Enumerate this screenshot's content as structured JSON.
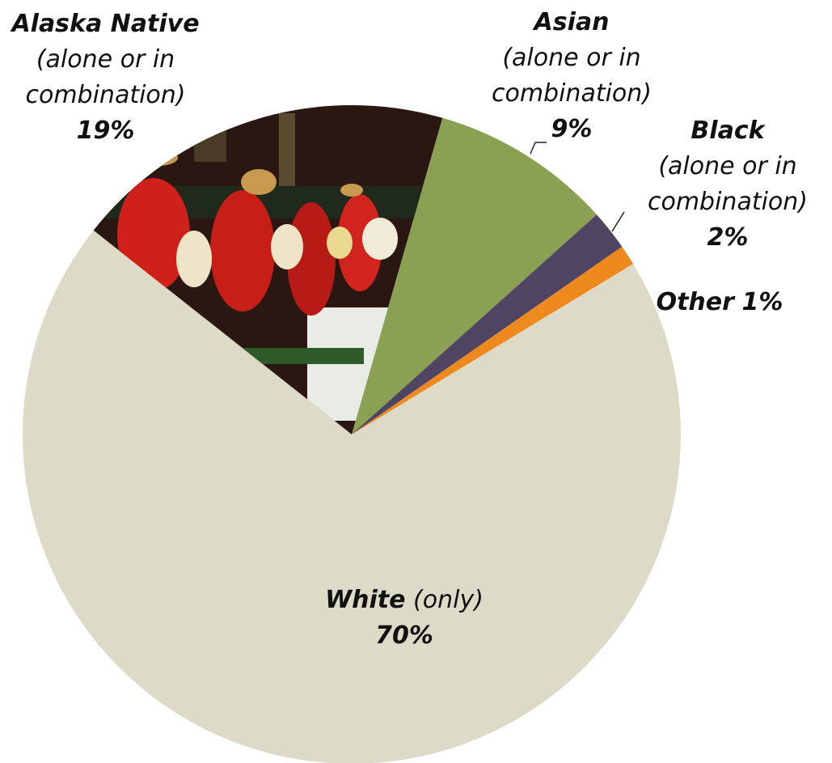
{
  "chart_data": {
    "type": "pie",
    "categories": [
      "Alaska Native",
      "Asian",
      "Black",
      "Other",
      "White"
    ],
    "notes": [
      "(alone or in combination)",
      "(alone or in combination)",
      "(alone or in combination)",
      null,
      "(only)"
    ],
    "values": [
      19,
      9,
      2,
      1,
      70
    ],
    "value_labels": [
      "19%",
      "9%",
      "2%",
      "1%",
      "70%"
    ],
    "colors": [
      "#2a1712",
      "#8aa052",
      "#4f4563",
      "#ee8a1d",
      "#dddbc8"
    ]
  }
}
